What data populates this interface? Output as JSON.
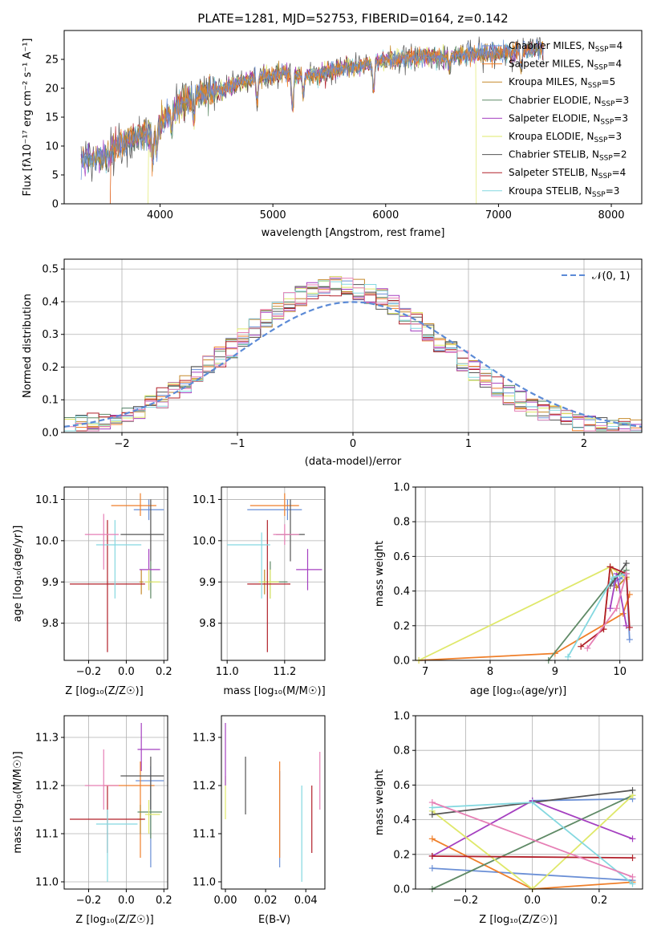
{
  "colors": {
    "Chabrier MILES": "#6a8fd6",
    "Salpeter MILES": "#ef7f2a",
    "Kroupa MILES": "#c58a2c",
    "Chabrier ELODIE": "#5f8a66",
    "Salpeter ELODIE": "#a540c0",
    "Kroupa ELODIE": "#dfe86a",
    "Chabrier STELIB": "#555555",
    "Salpeter STELIB": "#b2202a",
    "Kroupa STELIB": "#84d8e0",
    "pink": "#e67fb5",
    "normal_curve": "#5b8ad6"
  },
  "chart_data": [
    {
      "id": "spectrum",
      "type": "line",
      "title": "PLATE=1281, MJD=52753, FIBERID=0164, z=0.142",
      "xlabel": "wavelength [Angstrom, rest frame]",
      "ylabel": "Flux [fλ10⁻¹⁷ erg cm⁻² s⁻¹ A⁻¹]",
      "xlim": [
        3150,
        8270
      ],
      "ylim": [
        0,
        30
      ],
      "xticks": [
        4000,
        5000,
        6000,
        7000,
        8000
      ],
      "yticks": [
        0,
        5,
        10,
        15,
        20,
        25
      ],
      "grid": false,
      "legend_position": "top-right",
      "legend": [
        {
          "name": "Chabrier MILES",
          "nssp": "4"
        },
        {
          "name": "Salpeter MILES",
          "nssp": "4"
        },
        {
          "name": "Kroupa MILES",
          "nssp": "5"
        },
        {
          "name": "Chabrier ELODIE",
          "nssp": "3"
        },
        {
          "name": "Salpeter ELODIE",
          "nssp": "3"
        },
        {
          "name": "Kroupa ELODIE",
          "nssp": "3"
        },
        {
          "name": "Chabrier STELIB",
          "nssp": "2"
        },
        {
          "name": "Salpeter STELIB",
          "nssp": "4"
        },
        {
          "name": "Kroupa STELIB",
          "nssp": "3"
        }
      ],
      "continuum": {
        "x": [
          3300,
          3500,
          3700,
          3900,
          4000,
          4100,
          4300,
          4500,
          4700,
          4900,
          5100,
          5300,
          5500,
          5700,
          5900,
          6100,
          6300,
          6500,
          6800,
          7000,
          7200,
          7400
        ],
        "y": [
          7.5,
          8.0,
          11.0,
          12.5,
          13.5,
          16.0,
          18.5,
          19.5,
          21.0,
          22.0,
          22.5,
          22.0,
          23.0,
          23.5,
          24.5,
          25.0,
          25.5,
          25.5,
          26.0,
          26.0,
          26.5,
          27.0
        ]
      },
      "cutoffs": [
        {
          "model": "Salpeter MILES",
          "x0": 3560,
          "x1": 7430
        },
        {
          "model": "Kroupa ELODIE",
          "x0": 3900,
          "x1": 6800
        },
        {
          "model": "Salpeter STELIB",
          "x0": 3560,
          "x1": 7440
        }
      ]
    },
    {
      "id": "residuals",
      "type": "step",
      "xlabel": "(data-model)/error",
      "ylabel": "Normed distribution",
      "xlim": [
        -2.5,
        2.5
      ],
      "ylim": [
        0,
        0.53
      ],
      "xticks": [
        -2,
        -1,
        0,
        1,
        2
      ],
      "yticks": [
        0.0,
        0.1,
        0.2,
        0.3,
        0.4,
        0.5
      ],
      "grid": true,
      "legend": [
        "𝒩(0, 1)"
      ],
      "legend_position": "top-right",
      "bin_width": 0.1
    },
    {
      "id": "age-vs-Z",
      "type": "errorbar",
      "xlabel": "Z [log₁₀(Z/Z☉)]",
      "ylabel": "age  [log₁₀(age/yr)]",
      "xlim": [
        -0.33,
        0.22
      ],
      "ylim": [
        9.71,
        10.13
      ],
      "xticks": [
        -0.2,
        0.0,
        0.2
      ],
      "yticks": [
        9.8,
        9.9,
        10.0,
        10.1
      ],
      "grid": true,
      "points": [
        {
          "c": "Chabrier MILES",
          "x": 0.12,
          "y": 10.075,
          "xl": 0.04,
          "xh": 0.2,
          "yl": 10.05,
          "yh": 10.1
        },
        {
          "c": "Salpeter MILES",
          "x": 0.075,
          "y": 10.085,
          "xl": -0.08,
          "xh": 0.16,
          "yl": 10.06,
          "yh": 10.115
        },
        {
          "c": "Kroupa MILES",
          "x": 0.08,
          "y": 9.9,
          "xl": 0.07,
          "xh": 0.09,
          "yl": 9.87,
          "yh": 9.93
        },
        {
          "c": "Chabrier ELODIE",
          "x": 0.13,
          "y": 9.9,
          "xl": 0.12,
          "xh": 0.14,
          "yl": 9.86,
          "yh": 9.95
        },
        {
          "c": "Salpeter ELODIE",
          "x": 0.12,
          "y": 9.93,
          "xl": 0.07,
          "xh": 0.18,
          "yl": 9.88,
          "yh": 9.98
        },
        {
          "c": "Kroupa ELODIE",
          "x": 0.12,
          "y": 9.9,
          "xl": 0.1,
          "xh": 0.18,
          "yl": 9.88,
          "yh": 9.93
        },
        {
          "c": "Chabrier STELIB",
          "x": 0.13,
          "y": 10.015,
          "xl": -0.03,
          "xh": 0.2,
          "yl": 9.95,
          "yh": 10.1
        },
        {
          "c": "Salpeter STELIB",
          "x": -0.1,
          "y": 9.895,
          "xl": -0.3,
          "xh": 0.1,
          "yl": 9.73,
          "yh": 10.05
        },
        {
          "c": "Kroupa STELIB",
          "x": -0.06,
          "y": 9.99,
          "xl": -0.16,
          "xh": 0.08,
          "yl": 9.86,
          "yh": 10.05
        },
        {
          "c": "pink",
          "x": -0.12,
          "y": 10.015,
          "xl": -0.22,
          "xh": -0.04,
          "yl": 9.93,
          "yh": 10.065
        }
      ]
    },
    {
      "id": "age-vs-mass",
      "type": "errorbar",
      "xlabel": "mass [log₁₀(M/M☉)]",
      "ylabel": "",
      "xlim": [
        10.98,
        11.34
      ],
      "ylim": [
        9.71,
        10.13
      ],
      "xticks": [
        11.0,
        11.2
      ],
      "yticks": [
        9.8,
        9.9,
        10.0,
        10.1
      ],
      "grid": true,
      "points": [
        {
          "c": "Chabrier MILES",
          "x": 11.21,
          "y": 10.075,
          "xl": 11.07,
          "xh": 11.26,
          "yl": 10.05,
          "yh": 10.1
        },
        {
          "c": "Salpeter MILES",
          "x": 11.2,
          "y": 10.085,
          "xl": 11.08,
          "xh": 11.25,
          "yl": 10.06,
          "yh": 10.115
        },
        {
          "c": "Kroupa MILES",
          "x": 11.13,
          "y": 9.9,
          "xl": 11.12,
          "xh": 11.14,
          "yl": 9.87,
          "yh": 9.93
        },
        {
          "c": "Chabrier ELODIE",
          "x": 11.15,
          "y": 9.9,
          "xl": 11.12,
          "xh": 11.21,
          "yl": 9.86,
          "yh": 9.95
        },
        {
          "c": "Salpeter ELODIE",
          "x": 11.28,
          "y": 9.93,
          "xl": 11.24,
          "xh": 11.33,
          "yl": 9.88,
          "yh": 9.98
        },
        {
          "c": "Kroupa ELODIE",
          "x": 11.15,
          "y": 9.9,
          "xl": 11.11,
          "xh": 11.18,
          "yl": 9.86,
          "yh": 9.93
        },
        {
          "c": "Chabrier STELIB",
          "x": 11.22,
          "y": 10.015,
          "xl": 11.17,
          "xh": 11.27,
          "yl": 9.95,
          "yh": 10.1
        },
        {
          "c": "Salpeter STELIB",
          "x": 11.14,
          "y": 9.895,
          "xl": 11.07,
          "xh": 11.22,
          "yl": 9.73,
          "yh": 10.05
        },
        {
          "c": "Kroupa STELIB",
          "x": 11.12,
          "y": 9.99,
          "xl": 11.0,
          "xh": 11.15,
          "yl": 9.86,
          "yh": 10.02
        },
        {
          "c": "pink",
          "x": 11.2,
          "y": 10.015,
          "xl": 11.16,
          "xh": 11.25,
          "yl": 9.99,
          "yh": 10.04
        }
      ]
    },
    {
      "id": "weight-vs-age",
      "type": "line",
      "xlabel": "age  [log₁₀(age/yr)]",
      "ylabel": "mass weight",
      "xlim": [
        6.85,
        10.35
      ],
      "ylim": [
        0,
        1
      ],
      "xticks": [
        7,
        8,
        9,
        10
      ],
      "yticks": [
        0.0,
        0.2,
        0.4,
        0.6,
        0.8,
        1.0
      ],
      "grid": true,
      "series": [
        {
          "c": "Chabrier MILES",
          "x": [
            9.9,
            10.0,
            10.1,
            10.15
          ],
          "y": [
            0.45,
            0.47,
            0.5,
            0.12
          ]
        },
        {
          "c": "Salpeter MILES",
          "x": [
            6.9,
            9.0,
            10.05,
            10.15
          ],
          "y": [
            0.0,
            0.04,
            0.27,
            0.38
          ]
        },
        {
          "c": "Kroupa MILES",
          "x": [
            9.75,
            9.85,
            9.95,
            10.1
          ],
          "y": [
            0.18,
            0.54,
            0.42,
            0.48
          ]
        },
        {
          "c": "Chabrier ELODIE",
          "x": [
            8.9,
            9.9,
            10.1
          ],
          "y": [
            0.0,
            0.47,
            0.52
          ]
        },
        {
          "c": "Salpeter ELODIE",
          "x": [
            9.85,
            9.95,
            10.1
          ],
          "y": [
            0.3,
            0.5,
            0.2
          ]
        },
        {
          "c": "Kroupa ELODIE",
          "x": [
            6.9,
            9.85,
            10.1
          ],
          "y": [
            0.0,
            0.54,
            0.47
          ]
        },
        {
          "c": "Chabrier STELIB",
          "x": [
            9.85,
            10.1
          ],
          "y": [
            0.43,
            0.56
          ]
        },
        {
          "c": "Salpeter STELIB",
          "x": [
            9.4,
            9.75,
            9.85,
            10.1,
            10.15
          ],
          "y": [
            0.08,
            0.18,
            0.54,
            0.5,
            0.19
          ]
        },
        {
          "c": "Kroupa STELIB",
          "x": [
            9.2,
            9.9,
            10.1
          ],
          "y": [
            0.02,
            0.48,
            0.5
          ]
        },
        {
          "c": "pink",
          "x": [
            9.5,
            9.95,
            10.1
          ],
          "y": [
            0.07,
            0.3,
            0.5
          ]
        }
      ]
    },
    {
      "id": "mass-vs-Z",
      "type": "errorbar",
      "xlabel": "Z [log₁₀(Z/Z☉)]",
      "ylabel": "mass [log₁₀(M/M☉)]",
      "xlim": [
        -0.33,
        0.22
      ],
      "ylim": [
        10.985,
        11.345
      ],
      "xticks": [
        -0.2,
        0.0,
        0.2
      ],
      "yticks": [
        11.0,
        11.1,
        11.2,
        11.3
      ],
      "grid": true,
      "points": [
        {
          "c": "Chabrier MILES",
          "x": 0.13,
          "y": 11.21,
          "xl": 0.05,
          "xh": 0.2,
          "yl": 11.03,
          "yh": 11.24
        },
        {
          "c": "Salpeter MILES",
          "x": 0.075,
          "y": 11.2,
          "xl": -0.12,
          "xh": 0.15,
          "yl": 11.05,
          "yh": 11.25
        },
        {
          "c": "Kroupa MILES",
          "x": 0.075,
          "y": 11.13,
          "xl": 0.06,
          "xh": 0.09,
          "yl": 11.1,
          "yh": 11.16
        },
        {
          "c": "Chabrier ELODIE",
          "x": 0.13,
          "y": 11.145,
          "xl": 0.06,
          "xh": 0.19,
          "yl": 11.09,
          "yh": 11.2
        },
        {
          "c": "Salpeter ELODIE",
          "x": 0.08,
          "y": 11.275,
          "xl": 0.06,
          "xh": 0.18,
          "yl": 11.23,
          "yh": 11.33
        },
        {
          "c": "Kroupa ELODIE",
          "x": 0.12,
          "y": 11.14,
          "xl": 0.1,
          "xh": 0.18,
          "yl": 11.1,
          "yh": 11.17
        },
        {
          "c": "Chabrier STELIB",
          "x": 0.13,
          "y": 11.22,
          "xl": -0.03,
          "xh": 0.2,
          "yl": 11.15,
          "yh": 11.26
        },
        {
          "c": "Salpeter STELIB",
          "x": -0.1,
          "y": 11.13,
          "xl": -0.3,
          "xh": 0.1,
          "yl": 11.06,
          "yh": 11.2
        },
        {
          "c": "Kroupa STELIB",
          "x": -0.1,
          "y": 11.12,
          "xl": -0.16,
          "xh": 0.06,
          "yl": 11.0,
          "yh": 11.15
        },
        {
          "c": "pink",
          "x": -0.12,
          "y": 11.2,
          "xl": -0.22,
          "xh": -0.04,
          "yl": 11.15,
          "yh": 11.275
        }
      ]
    },
    {
      "id": "mass-vs-ebv",
      "type": "errorbar",
      "xlabel": "E(B-V)",
      "ylabel": "",
      "xlim": [
        -0.002,
        0.0495
      ],
      "ylim": [
        10.985,
        11.345
      ],
      "xticks": [
        0.0,
        0.02,
        0.04
      ],
      "yticks": [
        11.0,
        11.1,
        11.2,
        11.3
      ],
      "grid": false,
      "points": [
        {
          "c": "Kroupa ELODIE",
          "x": 0.0,
          "y": 11.17,
          "yl": 11.13,
          "yh": 11.22
        },
        {
          "c": "Salpeter ELODIE",
          "x": 0.0,
          "y": 11.25,
          "yl": 11.2,
          "yh": 11.33
        },
        {
          "c": "Chabrier STELIB",
          "x": 0.01,
          "y": 11.2,
          "yl": 11.14,
          "yh": 11.26
        },
        {
          "c": "Chabrier MILES",
          "x": 0.027,
          "y": 11.1,
          "yl": 11.03,
          "yh": 11.23
        },
        {
          "c": "Salpeter MILES",
          "x": 0.027,
          "y": 11.14,
          "yl": 11.05,
          "yh": 11.25
        },
        {
          "c": "Kroupa STELIB",
          "x": 0.038,
          "y": 11.1,
          "yl": 11.0,
          "yh": 11.2
        },
        {
          "c": "Salpeter STELIB",
          "x": 0.043,
          "y": 11.13,
          "yl": 11.06,
          "yh": 11.2
        },
        {
          "c": "pink",
          "x": 0.047,
          "y": 11.21,
          "yl": 11.15,
          "yh": 11.27
        }
      ]
    },
    {
      "id": "weight-vs-Z",
      "type": "line",
      "xlabel": "Z [log₁₀(Z/Z☉)]",
      "ylabel": "mass weight",
      "xlim": [
        -0.35,
        0.33
      ],
      "ylim": [
        0,
        1
      ],
      "xticks": [
        -0.2,
        0.0,
        0.2
      ],
      "yticks": [
        0.0,
        0.2,
        0.4,
        0.6,
        0.8,
        1.0
      ],
      "grid": true,
      "series": [
        {
          "c": "Chabrier MILES",
          "x": [
            -0.3,
            0.3
          ],
          "y": [
            0.12,
            0.05
          ]
        },
        {
          "c": "Chabrier MILES",
          "x": [
            0.0,
            0.3
          ],
          "y": [
            0.51,
            0.52
          ]
        },
        {
          "c": "Salpeter MILES",
          "x": [
            -0.3,
            0.0,
            0.3
          ],
          "y": [
            0.29,
            0.0,
            0.04
          ]
        },
        {
          "c": "Chabrier ELODIE",
          "x": [
            -0.3,
            0.3
          ],
          "y": [
            0.0,
            0.54
          ]
        },
        {
          "c": "Salpeter ELODIE",
          "x": [
            -0.3,
            0.0,
            0.3
          ],
          "y": [
            0.19,
            0.51,
            0.29
          ]
        },
        {
          "c": "Kroupa ELODIE",
          "x": [
            -0.3,
            0.0,
            0.3
          ],
          "y": [
            0.45,
            0.0,
            0.54
          ]
        },
        {
          "c": "Chabrier STELIB",
          "x": [
            -0.3,
            0.3
          ],
          "y": [
            0.43,
            0.57
          ]
        },
        {
          "c": "Salpeter STELIB",
          "x": [
            -0.3,
            0.3
          ],
          "y": [
            0.19,
            0.18
          ]
        },
        {
          "c": "Kroupa STELIB",
          "x": [
            -0.3,
            0.0,
            0.3
          ],
          "y": [
            0.47,
            0.5,
            0.03
          ]
        },
        {
          "c": "pink",
          "x": [
            -0.3,
            0.3
          ],
          "y": [
            0.5,
            0.07
          ]
        }
      ]
    }
  ]
}
